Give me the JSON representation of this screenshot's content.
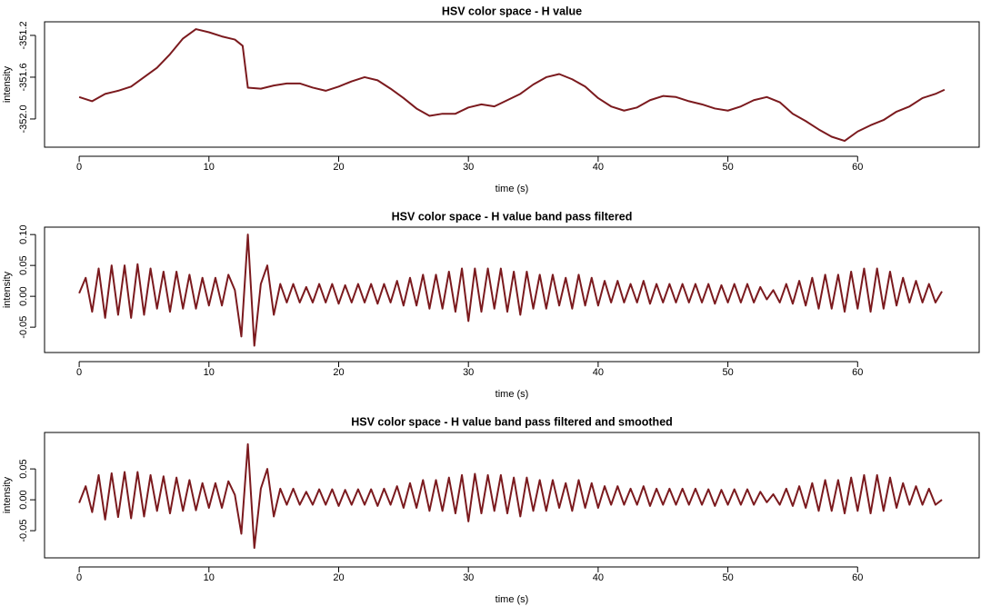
{
  "chart_data": [
    {
      "type": "line",
      "title": "HSV color space - H value",
      "x_label": "time (s)",
      "y_label": "intensity",
      "color": "#7b1a1e",
      "xlim": [
        -2.67,
        69.37
      ],
      "xticks": [
        0,
        10,
        20,
        30,
        40,
        50,
        60
      ],
      "ylim": [
        -352.27,
        -351.07
      ],
      "yticks": [
        -351.2,
        -351.6,
        {
          "value": -352,
          "label": "-352.0"
        }
      ],
      "x": [
        0,
        1,
        2,
        3,
        4,
        5,
        6,
        7,
        8,
        9,
        10,
        11,
        12,
        12.6,
        13,
        14,
        15,
        16,
        17,
        18,
        19,
        20,
        21,
        22,
        23,
        24,
        25,
        26,
        27,
        28,
        29,
        30,
        31,
        32,
        33,
        34,
        35,
        36,
        37,
        38,
        39,
        40,
        41,
        42,
        43,
        44,
        45,
        46,
        47,
        48,
        49,
        50,
        51,
        52,
        53,
        54,
        55,
        56,
        57,
        58,
        59,
        60,
        61,
        62,
        63,
        64,
        65,
        66,
        66.7
      ],
      "values": [
        -351.79,
        -351.83,
        -351.76,
        -351.73,
        -351.69,
        -351.6,
        -351.51,
        -351.38,
        -351.23,
        -351.14,
        -351.17,
        -351.21,
        -351.24,
        -351.3,
        -351.7,
        -351.71,
        -351.68,
        -351.66,
        -351.66,
        -351.7,
        -351.73,
        -351.69,
        -351.64,
        -351.6,
        -351.63,
        -351.71,
        -351.8,
        -351.9,
        -351.97,
        -351.95,
        -351.95,
        -351.89,
        -351.86,
        -351.88,
        -351.82,
        -351.76,
        -351.67,
        -351.6,
        -351.57,
        -351.62,
        -351.69,
        -351.8,
        -351.88,
        -351.92,
        -351.89,
        -351.82,
        -351.78,
        -351.79,
        -351.83,
        -351.86,
        -351.9,
        -351.92,
        -351.88,
        -351.82,
        -351.79,
        -351.84,
        -351.95,
        -352.02,
        -352.1,
        -352.17,
        -352.21,
        -352.12,
        -352.06,
        -352.01,
        -351.93,
        -351.88,
        -351.8,
        -351.76,
        -351.72
      ]
    },
    {
      "type": "line",
      "title": "HSV color space - H value band pass filtered",
      "x_label": "time (s)",
      "y_label": "intensity",
      "color": "#7b1a1e",
      "xlim": [
        -2.67,
        69.37
      ],
      "xticks": [
        0,
        10,
        20,
        30,
        40,
        50,
        60
      ],
      "ylim": [
        -0.091,
        0.112
      ],
      "yticks": [
        {
          "value": 0.1,
          "label": "0.10"
        },
        {
          "value": 0.05,
          "label": "0.05"
        },
        {
          "value": 0,
          "label": "0.00"
        },
        {
          "value": -0.05,
          "label": "-0.05"
        }
      ],
      "x": [
        0,
        0.5,
        1,
        1.5,
        2,
        2.5,
        3,
        3.5,
        4,
        4.5,
        5,
        5.5,
        6,
        6.5,
        7,
        7.5,
        8,
        8.5,
        9,
        9.5,
        10,
        10.5,
        11,
        11.5,
        12,
        12.5,
        13,
        13.5,
        14,
        14.5,
        15,
        15.5,
        16,
        16.5,
        17,
        17.5,
        18,
        18.5,
        19,
        19.5,
        20,
        20.5,
        21,
        21.5,
        22,
        22.5,
        23,
        23.5,
        24,
        24.5,
        25,
        25.5,
        26,
        26.5,
        27,
        27.5,
        28,
        28.5,
        29,
        29.5,
        30,
        30.5,
        31,
        31.5,
        32,
        32.5,
        33,
        33.5,
        34,
        34.5,
        35,
        35.5,
        36,
        36.5,
        37,
        37.5,
        38,
        38.5,
        39,
        39.5,
        40,
        40.5,
        41,
        41.5,
        42,
        42.5,
        43,
        43.5,
        44,
        44.5,
        45,
        45.5,
        46,
        46.5,
        47,
        47.5,
        48,
        48.5,
        49,
        49.5,
        50,
        50.5,
        51,
        51.5,
        52,
        52.5,
        53,
        53.5,
        54,
        54.5,
        55,
        55.5,
        56,
        56.5,
        57,
        57.5,
        58,
        58.5,
        59,
        59.5,
        60,
        60.5,
        61,
        61.5,
        62,
        62.5,
        63,
        63.5,
        64,
        64.5,
        65,
        65.5,
        66,
        66.5
      ],
      "values": [
        0.005,
        0.03,
        -0.025,
        0.045,
        -0.035,
        0.05,
        -0.03,
        0.05,
        -0.035,
        0.052,
        -0.03,
        0.045,
        -0.02,
        0.04,
        -0.025,
        0.04,
        -0.02,
        0.035,
        -0.02,
        0.03,
        -0.015,
        0.03,
        -0.015,
        0.035,
        0.01,
        -0.065,
        0.1,
        -0.08,
        0.02,
        0.05,
        -0.03,
        0.02,
        -0.01,
        0.02,
        -0.01,
        0.015,
        -0.01,
        0.02,
        -0.01,
        0.02,
        -0.012,
        0.018,
        -0.01,
        0.02,
        -0.01,
        0.02,
        -0.012,
        0.02,
        -0.01,
        0.025,
        -0.015,
        0.03,
        -0.015,
        0.035,
        -0.02,
        0.035,
        -0.02,
        0.04,
        -0.025,
        0.045,
        -0.04,
        0.045,
        -0.025,
        0.045,
        -0.02,
        0.045,
        -0.025,
        0.04,
        -0.03,
        0.04,
        -0.02,
        0.035,
        -0.02,
        0.035,
        -0.015,
        0.03,
        -0.02,
        0.035,
        -0.015,
        0.03,
        -0.015,
        0.025,
        -0.01,
        0.025,
        -0.01,
        0.02,
        -0.01,
        0.025,
        -0.012,
        0.02,
        -0.01,
        0.02,
        -0.01,
        0.02,
        -0.01,
        0.02,
        -0.01,
        0.02,
        -0.012,
        0.018,
        -0.01,
        0.02,
        -0.01,
        0.02,
        -0.01,
        0.015,
        -0.005,
        0.01,
        -0.01,
        0.02,
        -0.012,
        0.025,
        -0.015,
        0.03,
        -0.02,
        0.035,
        -0.02,
        0.035,
        -0.025,
        0.04,
        -0.02,
        0.045,
        -0.025,
        0.045,
        -0.02,
        0.04,
        -0.015,
        0.03,
        -0.01,
        0.025,
        -0.01,
        0.02,
        -0.01,
        0.008
      ]
    },
    {
      "type": "line",
      "title": "HSV color space - H value band pass filtered and smoothed",
      "x_label": "time (s)",
      "y_label": "intensity",
      "color": "#7b1a1e",
      "xlim": [
        -2.67,
        69.37
      ],
      "xticks": [
        0,
        10,
        20,
        30,
        40,
        50,
        60
      ],
      "ylim": [
        -0.094,
        0.109
      ],
      "yticks": [
        {
          "value": 0.05,
          "label": "0.05"
        },
        {
          "value": 0,
          "label": "0.00"
        },
        {
          "value": -0.05,
          "label": "-0.05"
        }
      ],
      "x": [
        0,
        0.5,
        1,
        1.5,
        2,
        2.5,
        3,
        3.5,
        4,
        4.5,
        5,
        5.5,
        6,
        6.5,
        7,
        7.5,
        8,
        8.5,
        9,
        9.5,
        10,
        10.5,
        11,
        11.5,
        12,
        12.5,
        13,
        13.5,
        14,
        14.5,
        15,
        15.5,
        16,
        16.5,
        17,
        17.5,
        18,
        18.5,
        19,
        19.5,
        20,
        20.5,
        21,
        21.5,
        22,
        22.5,
        23,
        23.5,
        24,
        24.5,
        25,
        25.5,
        26,
        26.5,
        27,
        27.5,
        28,
        28.5,
        29,
        29.5,
        30,
        30.5,
        31,
        31.5,
        32,
        32.5,
        33,
        33.5,
        34,
        34.5,
        35,
        35.5,
        36,
        36.5,
        37,
        37.5,
        38,
        38.5,
        39,
        39.5,
        40,
        40.5,
        41,
        41.5,
        42,
        42.5,
        43,
        43.5,
        44,
        44.5,
        45,
        45.5,
        46,
        46.5,
        47,
        47.5,
        48,
        48.5,
        49,
        49.5,
        50,
        50.5,
        51,
        51.5,
        52,
        52.5,
        53,
        53.5,
        54,
        54.5,
        55,
        55.5,
        56,
        56.5,
        57,
        57.5,
        58,
        58.5,
        59,
        59.5,
        60,
        60.5,
        61,
        61.5,
        62,
        62.5,
        63,
        63.5,
        64,
        64.5,
        65,
        65.5,
        66,
        66.5
      ],
      "values": [
        -0.005,
        0.022,
        -0.02,
        0.04,
        -0.032,
        0.043,
        -0.028,
        0.045,
        -0.03,
        0.045,
        -0.027,
        0.04,
        -0.018,
        0.038,
        -0.022,
        0.036,
        -0.018,
        0.032,
        -0.017,
        0.027,
        -0.013,
        0.027,
        -0.013,
        0.03,
        0.008,
        -0.055,
        0.09,
        -0.078,
        0.018,
        0.05,
        -0.027,
        0.018,
        -0.008,
        0.018,
        -0.008,
        0.013,
        -0.008,
        0.017,
        -0.008,
        0.017,
        -0.01,
        0.016,
        -0.008,
        0.017,
        -0.008,
        0.017,
        -0.01,
        0.018,
        -0.008,
        0.022,
        -0.013,
        0.027,
        -0.013,
        0.032,
        -0.018,
        0.032,
        -0.018,
        0.036,
        -0.022,
        0.04,
        -0.035,
        0.042,
        -0.022,
        0.04,
        -0.018,
        0.04,
        -0.022,
        0.036,
        -0.027,
        0.036,
        -0.018,
        0.032,
        -0.018,
        0.032,
        -0.013,
        0.027,
        -0.018,
        0.032,
        -0.013,
        0.027,
        -0.013,
        0.022,
        -0.008,
        0.022,
        -0.008,
        0.018,
        -0.008,
        0.022,
        -0.01,
        0.018,
        -0.008,
        0.018,
        -0.008,
        0.018,
        -0.008,
        0.018,
        -0.008,
        0.017,
        -0.01,
        0.016,
        -0.008,
        0.017,
        -0.008,
        0.017,
        -0.008,
        0.013,
        -0.004,
        0.009,
        -0.008,
        0.018,
        -0.01,
        0.022,
        -0.013,
        0.027,
        -0.018,
        0.032,
        -0.018,
        0.032,
        -0.022,
        0.036,
        -0.018,
        0.04,
        -0.022,
        0.04,
        -0.018,
        0.036,
        -0.013,
        0.027,
        -0.008,
        0.022,
        -0.008,
        0.018,
        -0.008,
        0
      ]
    }
  ]
}
